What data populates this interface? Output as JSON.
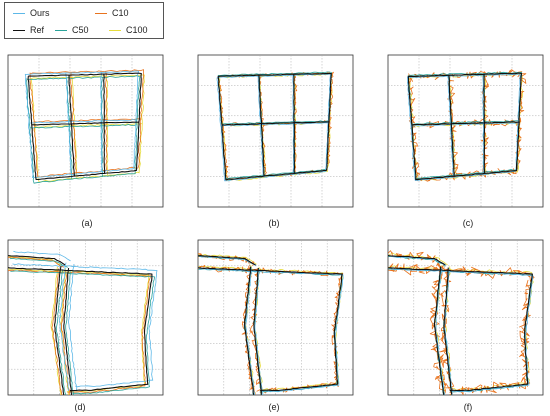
{
  "legend": {
    "items": [
      {
        "label": "Ours",
        "color": "#5db8e8"
      },
      {
        "label": "C10",
        "color": "#e8731e"
      },
      {
        "label": "Ref",
        "color": "#111111"
      },
      {
        "label": "C50",
        "color": "#2aa39a"
      },
      {
        "label": "C100",
        "color": "#e6dc3a"
      }
    ]
  },
  "chart_data": [
    {
      "type": "line",
      "panel": "(a)",
      "series": [
        {
          "name": "Ours"
        },
        {
          "name": "C10"
        },
        {
          "name": "Ref"
        },
        {
          "name": "C50"
        },
        {
          "name": "C100"
        }
      ],
      "grid": true
    },
    {
      "type": "line",
      "panel": "(b)",
      "series": [
        {
          "name": "Ours"
        },
        {
          "name": "C10"
        },
        {
          "name": "Ref"
        },
        {
          "name": "C50"
        },
        {
          "name": "C100"
        }
      ],
      "grid": true
    },
    {
      "type": "line",
      "panel": "(c)",
      "series": [
        {
          "name": "Ours"
        },
        {
          "name": "C10"
        },
        {
          "name": "Ref"
        },
        {
          "name": "C50"
        },
        {
          "name": "C100"
        }
      ],
      "grid": true
    },
    {
      "type": "line",
      "panel": "(d)",
      "series": [
        {
          "name": "Ours"
        },
        {
          "name": "C10"
        },
        {
          "name": "Ref"
        },
        {
          "name": "C50"
        },
        {
          "name": "C100"
        }
      ],
      "grid": true
    },
    {
      "type": "line",
      "panel": "(e)",
      "series": [
        {
          "name": "Ours"
        },
        {
          "name": "C10"
        },
        {
          "name": "Ref"
        },
        {
          "name": "C50"
        },
        {
          "name": "C100"
        }
      ],
      "grid": true
    },
    {
      "type": "line",
      "panel": "(f)",
      "series": [
        {
          "name": "Ours"
        },
        {
          "name": "C10"
        },
        {
          "name": "Ref"
        },
        {
          "name": "C50"
        },
        {
          "name": "C100"
        }
      ],
      "grid": true
    }
  ]
}
